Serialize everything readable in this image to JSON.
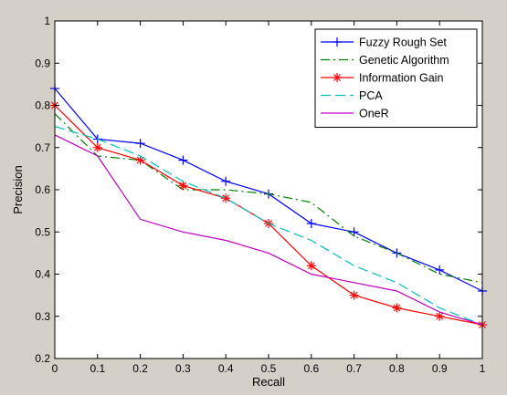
{
  "chart_data": {
    "type": "line",
    "title": "",
    "xlabel": "Recall",
    "ylabel": "Precision",
    "xlim": [
      0,
      1
    ],
    "ylim": [
      0.2,
      1
    ],
    "x_ticks": [
      "0",
      "0.1",
      "0.2",
      "0.3",
      "0.4",
      "0.5",
      "0.6",
      "0.7",
      "0.8",
      "0.9",
      "1"
    ],
    "y_ticks": [
      "0.2",
      "0.3",
      "0.4",
      "0.5",
      "0.6",
      "0.7",
      "0.8",
      "0.9",
      "1"
    ],
    "grid": false,
    "legend_position": "top-right",
    "x": [
      0,
      0.1,
      0.2,
      0.3,
      0.4,
      0.5,
      0.6,
      0.7,
      0.8,
      0.9,
      1
    ],
    "series": [
      {
        "name": "Fuzzy Rough Set",
        "color": "#0000ff",
        "dash": "solid",
        "marker": "plus",
        "values": [
          0.84,
          0.72,
          0.71,
          0.67,
          0.62,
          0.59,
          0.52,
          0.5,
          0.45,
          0.41,
          0.36
        ]
      },
      {
        "name": "Genetic Algorithm",
        "color": "#008000",
        "dash": "dashdot",
        "marker": "none",
        "values": [
          0.78,
          0.68,
          0.67,
          0.6,
          0.6,
          0.59,
          0.57,
          0.49,
          0.45,
          0.4,
          0.38
        ]
      },
      {
        "name": "Information Gain",
        "color": "#ff0000",
        "dash": "solid",
        "marker": "star",
        "values": [
          0.8,
          0.7,
          0.67,
          0.61,
          0.58,
          0.52,
          0.42,
          0.35,
          0.32,
          0.3,
          0.28
        ]
      },
      {
        "name": "PCA",
        "color": "#00bfbf",
        "dash": "dashed",
        "marker": "none",
        "values": [
          0.75,
          0.72,
          0.68,
          0.62,
          0.58,
          0.52,
          0.48,
          0.42,
          0.38,
          0.32,
          0.28
        ]
      },
      {
        "name": "OneR",
        "color": "#bf00bf",
        "dash": "solid",
        "marker": "none",
        "values": [
          0.73,
          0.68,
          0.53,
          0.5,
          0.48,
          0.45,
          0.4,
          0.38,
          0.36,
          0.31,
          0.28
        ]
      }
    ]
  }
}
